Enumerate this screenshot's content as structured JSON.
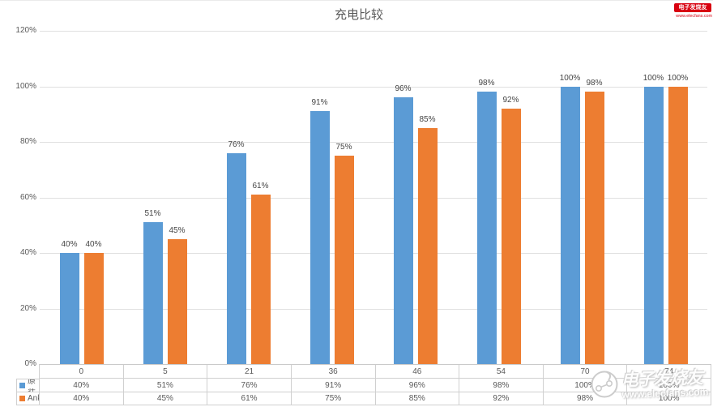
{
  "title": "充电比较",
  "chart_data": {
    "type": "bar",
    "title": "充电比较",
    "categories": [
      "0",
      "5",
      "21",
      "36",
      "46",
      "54",
      "70",
      "74"
    ],
    "series": [
      {
        "name": "原装",
        "color": "#5B9BD5",
        "values": [
          40,
          51,
          76,
          91,
          96,
          98,
          100,
          100
        ],
        "labels": [
          "40%",
          "51%",
          "76%",
          "91%",
          "96%",
          "98%",
          "100%",
          "100%"
        ]
      },
      {
        "name": "Anker",
        "color": "#ED7D31",
        "values": [
          40,
          45,
          61,
          75,
          85,
          92,
          98,
          100
        ],
        "labels": [
          "40%",
          "45%",
          "61%",
          "75%",
          "85%",
          "92%",
          "98%",
          "100%"
        ]
      }
    ],
    "xlabel": "",
    "ylabel": "",
    "ylim": [
      0,
      120
    ],
    "ytick_values": [
      0,
      20,
      40,
      60,
      80,
      100,
      120
    ],
    "ytick_labels": [
      "0%",
      "20%",
      "40%",
      "60%",
      "80%",
      "100%",
      "120%"
    ],
    "grid": true,
    "legend_position": "data-table"
  },
  "data_table": {
    "columns": [
      "0",
      "5",
      "21",
      "36",
      "46",
      "54",
      "70",
      "74"
    ],
    "rows": [
      {
        "label": "原装",
        "key_color": "#5B9BD5",
        "values": [
          "40%",
          "51%",
          "76%",
          "91%",
          "96%",
          "98%",
          "100%",
          "100%"
        ]
      },
      {
        "label": "Anker",
        "key_color": "#ED7D31",
        "values": [
          "40%",
          "45%",
          "61%",
          "75%",
          "85%",
          "92%",
          "98%",
          "100%"
        ]
      }
    ]
  },
  "watermark_bottom": {
    "brand": "电子发烧友",
    "url": "www.elecfans.com"
  },
  "watermark_top": {
    "brand": "电子发烧友",
    "url": "www.elecfans.com"
  },
  "colors": {
    "series1": "#5B9BD5",
    "series2": "#ED7D31",
    "gridline": "#E0E0E0",
    "axis_text": "#595959",
    "bar_label_text": "#444444",
    "table_border": "#D0D0D0",
    "watermark_red": "#D8000F"
  }
}
